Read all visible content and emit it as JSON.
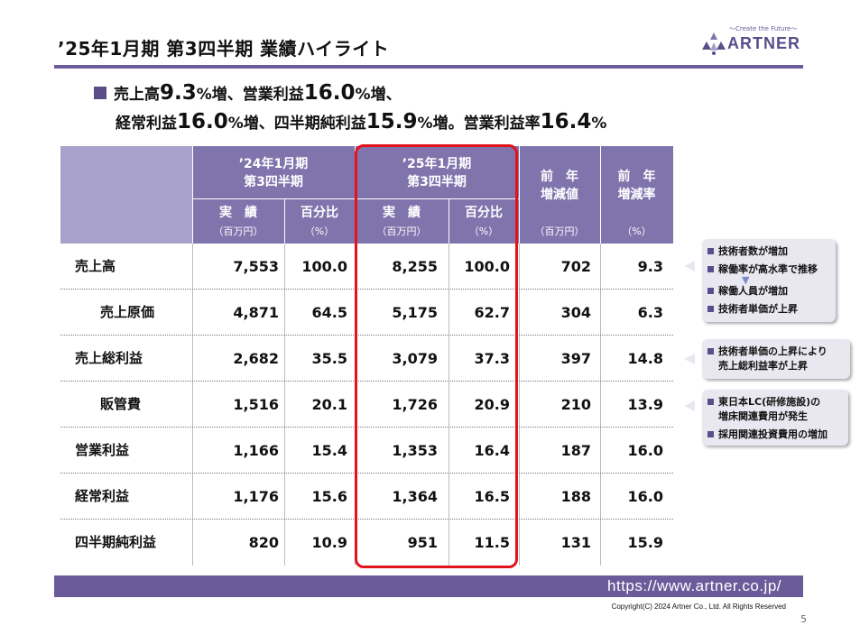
{
  "header": {
    "title": "’25年1月期 第3四半期 業績ハイライト",
    "logo_tagline": "～Create the Future～",
    "logo_text": "ARTNER"
  },
  "summary": {
    "l1_a": "売上高",
    "l1_b": "9.3",
    "l1_c": "%増、営業利益",
    "l1_d": "16.0",
    "l1_e": "%増、",
    "l2_a": "経常利益",
    "l2_b": "16.0",
    "l2_c": "%増、四半期純利益",
    "l2_d": "15.9",
    "l2_e": "%増。営業利益率",
    "l2_f": "16.4",
    "l2_g": "%"
  },
  "table": {
    "col_prev_title": "’24年1月期",
    "col_prev_sub": "第3四半期",
    "col_curr_title": "’25年1月期",
    "col_curr_sub": "第3四半期",
    "col_diff": "前　年\n増減値",
    "col_rate": "前　年\n増減率",
    "actual": "実　績",
    "pct": "百分比",
    "unit_mil": "（百万円）",
    "unit_pct": "（%）",
    "unit_mil_diff": "（百万円）",
    "unit_pct_rate": "（%）",
    "rows": [
      {
        "label": "売上高",
        "prev": "7,553",
        "prev_pct": "100.0",
        "curr": "8,255",
        "curr_pct": "100.0",
        "diff": "702",
        "rate": "9.3"
      },
      {
        "label": "売上原価",
        "prev": "4,871",
        "prev_pct": "64.5",
        "curr": "5,175",
        "curr_pct": "62.7",
        "diff": "304",
        "rate": "6.3"
      },
      {
        "label": "売上総利益",
        "prev": "2,682",
        "prev_pct": "35.5",
        "curr": "3,079",
        "curr_pct": "37.3",
        "diff": "397",
        "rate": "14.8"
      },
      {
        "label": "販管費",
        "prev": "1,516",
        "prev_pct": "20.1",
        "curr": "1,726",
        "curr_pct": "20.9",
        "diff": "210",
        "rate": "13.9"
      },
      {
        "label": "営業利益",
        "prev": "1,166",
        "prev_pct": "15.4",
        "curr": "1,353",
        "curr_pct": "16.4",
        "diff": "187",
        "rate": "16.0"
      },
      {
        "label": "経常利益",
        "prev": "1,176",
        "prev_pct": "15.6",
        "curr": "1,364",
        "curr_pct": "16.5",
        "diff": "188",
        "rate": "16.0"
      },
      {
        "label": "四半期純利益",
        "prev": "820",
        "prev_pct": "10.9",
        "curr": "951",
        "curr_pct": "11.5",
        "diff": "131",
        "rate": "15.9"
      }
    ]
  },
  "notes": {
    "n1": [
      "技術者数が増加",
      "稼働率が高水準で推移",
      "稼働人員が増加",
      "技術者単価が上昇"
    ],
    "n2": [
      "技術者単価の上昇により\n売上総利益率が上昇"
    ],
    "n3": [
      "東日本LC(研修施設)の\n増床関連費用が発生",
      "採用関連投資費用の増加"
    ]
  },
  "footer": {
    "url": "https://www.artner.co.jp/",
    "copyright": "Copyright(C) 2024 Artner Co., Ltd. All Rights Reserved",
    "page": "5"
  }
}
